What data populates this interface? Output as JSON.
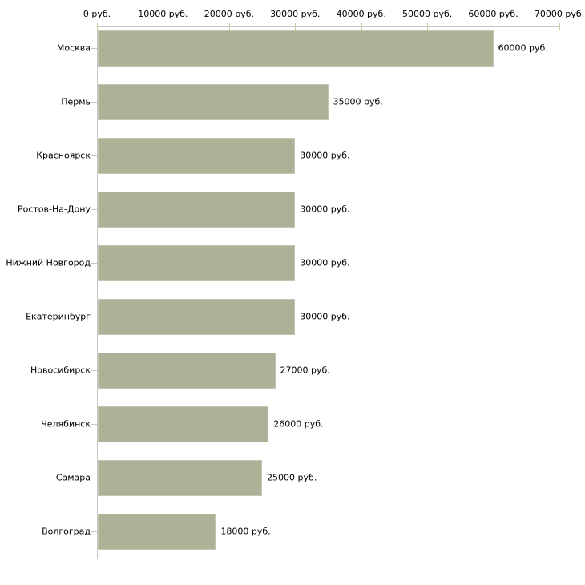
{
  "chart_data": {
    "type": "bar",
    "orientation": "horizontal",
    "title": "",
    "xlabel": "",
    "ylabel": "",
    "unit": "руб.",
    "categories": [
      "Москва",
      "Пермь",
      "Красноярск",
      "Ростов-На-Дону",
      "Нижний Новгород",
      "Екатеринбург",
      "Новосибирск",
      "Челябинск",
      "Самара",
      "Волгоград"
    ],
    "values": [
      60000,
      35000,
      30000,
      30000,
      30000,
      30000,
      27000,
      26000,
      25000,
      18000
    ],
    "value_labels": [
      "60000 руб.",
      "35000 руб.",
      "30000 руб.",
      "30000 руб.",
      "30000 руб.",
      "30000 руб.",
      "27000 руб.",
      "26000 руб.",
      "25000 руб.",
      "18000 руб."
    ],
    "x_ticks": [
      0,
      10000,
      20000,
      30000,
      40000,
      50000,
      60000,
      70000
    ],
    "x_tick_labels": [
      "0 руб.",
      "10000 руб.",
      "20000 руб.",
      "30000 руб.",
      "40000 руб.",
      "50000 руб.",
      "60000 руб.",
      "70000 руб."
    ],
    "xlim": [
      0,
      70000
    ],
    "grid": false,
    "legend_position": "none",
    "bar_color": "#acb297",
    "bar_border_color": "#c3c7b1",
    "axis_color": "#c6c6c6",
    "tick_color": "#cbcc9c",
    "text_color": "#000000",
    "background_color": "#ffffff"
  }
}
